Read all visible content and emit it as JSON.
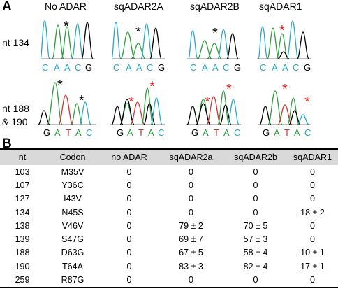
{
  "panel_a": {
    "letter": "A",
    "columns": [
      "No ADAR",
      "sqADAR2A",
      "sqADAR2B",
      "sqADAR1"
    ],
    "row1": {
      "label_lines": [
        "nt 134"
      ],
      "bases": [
        "C",
        "A",
        "A",
        "C",
        "G"
      ]
    },
    "row2": {
      "label_lines": [
        "nt 188",
        "& 190"
      ],
      "bases": [
        "G",
        "A",
        "T",
        "A",
        "C"
      ]
    },
    "colors": {
      "C": "#29a8c8",
      "A": "#2e9e3e",
      "G": "#000000",
      "T": "#d93030",
      "star_black": "#000000",
      "star_red": "#e02020"
    }
  },
  "panel_b": {
    "letter": "B",
    "headers": [
      "nt",
      "Codon",
      "no ADAR",
      "sqADAR2a",
      "sqADAR2b",
      "sqADAR1"
    ],
    "rows": [
      [
        "103",
        "M35V",
        "0",
        "0",
        "0",
        "0"
      ],
      [
        "107",
        "Y36C",
        "0",
        "0",
        "0",
        "0"
      ],
      [
        "127",
        "I43V",
        "0",
        "0",
        "0",
        "0"
      ],
      [
        "134",
        "N45S",
        "0",
        "0",
        "0",
        "18 ± 2"
      ],
      [
        "138",
        "V46V",
        "0",
        "79 ± 2",
        "70 ± 5",
        "0"
      ],
      [
        "139",
        "S47G",
        "0",
        "69 ± 7",
        "57 ± 3",
        "0"
      ],
      [
        "188",
        "D63G",
        "0",
        "67 ± 5",
        "58 ± 4",
        "10 ± 1"
      ],
      [
        "190",
        "T64A",
        "0",
        "83 ± 3",
        "82 ± 4",
        "17 ± 1"
      ],
      [
        "259",
        "R87G",
        "0",
        "0",
        "0",
        "0"
      ]
    ]
  }
}
